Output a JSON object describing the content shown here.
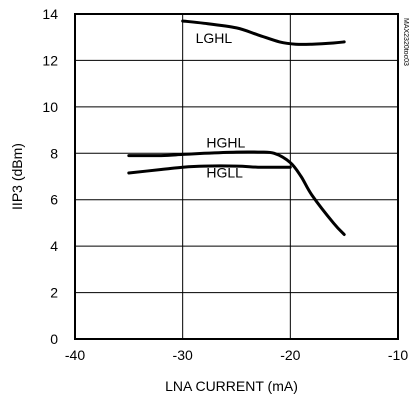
{
  "chart_data": {
    "type": "line",
    "xlabel": "LNA CURRENT (mA)",
    "ylabel": "IIP3 (dBm)",
    "xlim": [
      -40,
      -10
    ],
    "ylim": [
      0,
      14
    ],
    "x_ticks": [
      -40,
      -30,
      -20,
      -10
    ],
    "y_ticks": [
      0,
      2,
      4,
      6,
      8,
      10,
      12,
      14
    ],
    "x_tick_labels": [
      "-40",
      "-30",
      "-20",
      "-10"
    ],
    "y_tick_labels": [
      "0",
      "2",
      "4",
      "6",
      "8",
      "10",
      "12",
      "14"
    ],
    "grid": true,
    "watermark": "MAX2320toc03",
    "series": [
      {
        "name": "LGHL",
        "x": [
          -30,
          -28,
          -25,
          -23,
          -21,
          -19.5,
          -18,
          -16,
          -15
        ],
        "y": [
          13.7,
          13.6,
          13.4,
          13.1,
          12.8,
          12.7,
          12.7,
          12.75,
          12.8
        ]
      },
      {
        "name": "HGHL",
        "x": [
          -35,
          -32,
          -30,
          -28,
          -25,
          -23,
          -21.5,
          -20,
          -19,
          -18,
          -16,
          -15
        ],
        "y": [
          7.9,
          7.9,
          7.95,
          8.0,
          8.05,
          8.05,
          8.0,
          7.6,
          7.0,
          6.2,
          5.0,
          4.5
        ]
      },
      {
        "name": "HGLL",
        "x": [
          -35,
          -32,
          -30,
          -28,
          -25,
          -23,
          -21,
          -20
        ],
        "y": [
          7.15,
          7.3,
          7.4,
          7.45,
          7.45,
          7.4,
          7.4,
          7.4
        ]
      }
    ],
    "label_anchors": [
      {
        "name": "LGHL",
        "x": -28.8,
        "y": 12.75
      },
      {
        "name": "HGHL",
        "x": -27.8,
        "y": 8.25
      },
      {
        "name": "HGLL",
        "x": -27.8,
        "y": 6.95
      }
    ]
  }
}
